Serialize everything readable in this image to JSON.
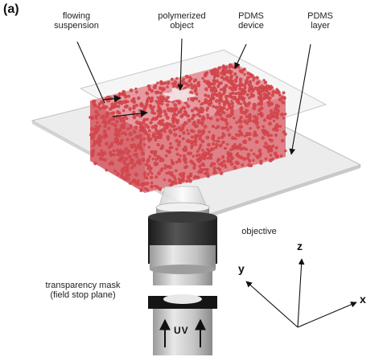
{
  "figure": {
    "panel_label": "(a)",
    "labels": {
      "flowing_line1": "flowing",
      "flowing_line2": "suspension",
      "polymerized_line1": "polymerized",
      "polymerized_line2": "object",
      "pdms_device_line1": "PDMS",
      "pdms_device_line2": "device",
      "pdms_layer_line1": "PDMS",
      "pdms_layer_line2": "layer",
      "objective": "objective",
      "mask_line1": "transparency mask",
      "mask_line2": "(field stop plane)",
      "uv": "UV"
    },
    "axes": {
      "x": "x",
      "y": "y",
      "z": "z"
    },
    "colors": {
      "particles": "#d9494f",
      "glass": "#e6e6e6",
      "objective_dark": "#2b2b2b",
      "objective_grey": "#b8b8b8"
    }
  }
}
